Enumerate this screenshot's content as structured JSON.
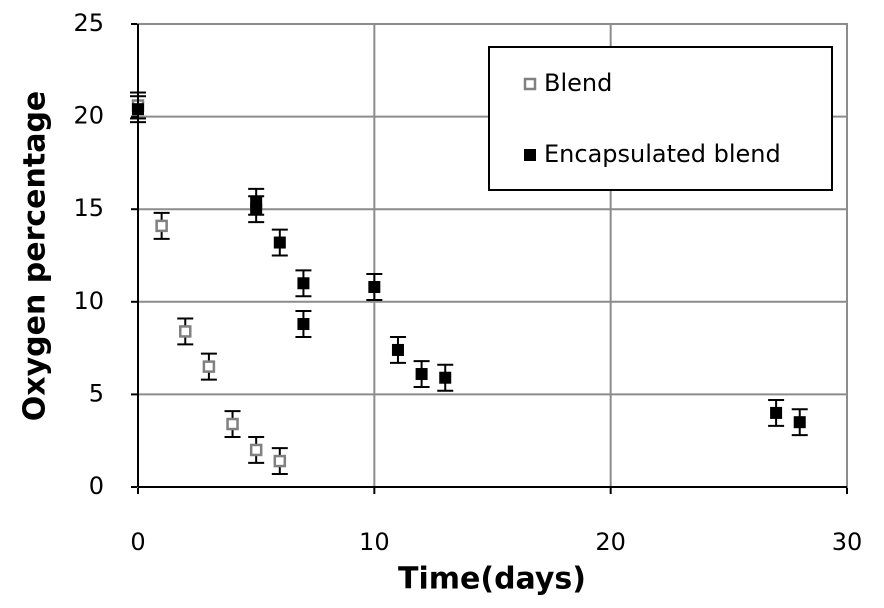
{
  "chart_data": {
    "type": "scatter",
    "xlabel": "Time(days)",
    "ylabel": "Oxygen percentage",
    "xlim": [
      0,
      30
    ],
    "xticks": [
      0,
      10,
      20,
      30
    ],
    "ylim": [
      0,
      25
    ],
    "yticks": [
      0,
      5,
      10,
      15,
      20,
      25
    ],
    "grid": true,
    "legend": "upper right",
    "series": [
      {
        "name": "Blend",
        "color": "#808080",
        "marker": "open-square",
        "x": [
          0,
          1,
          2,
          3,
          4,
          5,
          6
        ],
        "values": [
          20.6,
          14.1,
          8.4,
          6.5,
          3.4,
          2.0,
          1.4
        ],
        "errors": [
          0.7,
          0.7,
          0.7,
          0.7,
          0.7,
          0.7,
          0.7
        ]
      },
      {
        "name": "Encapsulated blend",
        "color": "#000000",
        "marker": "filled-square",
        "x": [
          0,
          5,
          5,
          6,
          7,
          7,
          10,
          11,
          12,
          13,
          27,
          28
        ],
        "values": [
          20.4,
          15.4,
          15.0,
          13.2,
          11.0,
          8.8,
          10.8,
          7.4,
          6.1,
          5.9,
          4.0,
          3.5
        ],
        "errors": [
          0.7,
          0.7,
          0.7,
          0.7,
          0.7,
          0.7,
          0.7,
          0.7,
          0.7,
          0.7,
          0.7,
          0.7
        ]
      }
    ]
  }
}
